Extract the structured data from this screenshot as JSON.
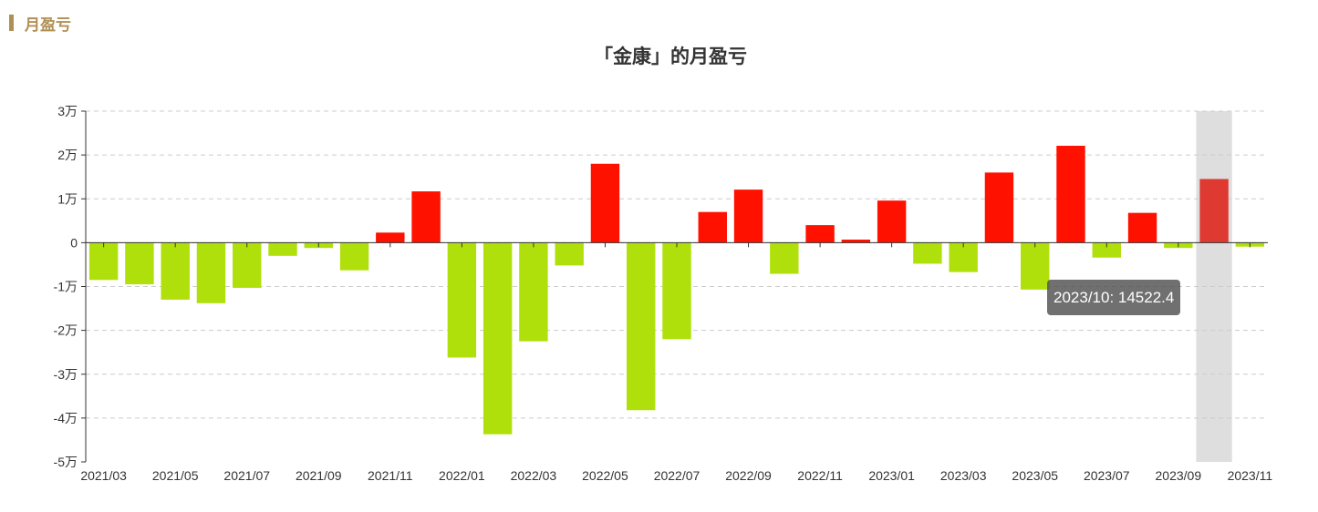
{
  "section": {
    "title": "月盈亏"
  },
  "chart_data": {
    "type": "bar",
    "title": "「金康」的月盈亏",
    "categories": [
      "2021/03",
      "2021/04",
      "2021/05",
      "2021/06",
      "2021/07",
      "2021/08",
      "2021/09",
      "2021/10",
      "2021/11",
      "2021/12",
      "2022/01",
      "2022/02",
      "2022/03",
      "2022/04",
      "2022/05",
      "2022/06",
      "2022/07",
      "2022/08",
      "2022/09",
      "2022/10",
      "2022/11",
      "2022/12",
      "2023/01",
      "2023/02",
      "2023/03",
      "2023/04",
      "2023/05",
      "2023/06",
      "2023/07",
      "2023/08",
      "2023/09",
      "2023/10",
      "2023/11"
    ],
    "values": [
      -8500,
      -9500,
      -13000,
      -13800,
      -10300,
      -3000,
      -1200,
      -6300,
      2300,
      11700,
      -26200,
      -43700,
      -22500,
      -5200,
      18000,
      -38200,
      -22000,
      7000,
      12100,
      -7100,
      4000,
      700,
      9600,
      -4800,
      -6700,
      16000,
      -10700,
      22100,
      -3400,
      6800,
      -1200,
      14522.4,
      -900
    ],
    "x_tick_labels": [
      "2021/03",
      "2021/05",
      "2021/07",
      "2021/09",
      "2021/11",
      "2022/01",
      "2022/03",
      "2022/05",
      "2022/07",
      "2022/09",
      "2022/11",
      "2023/01",
      "2023/03",
      "2023/05",
      "2023/07",
      "2023/09",
      "2023/11"
    ],
    "y_ticks": [
      30000,
      20000,
      10000,
      0,
      -10000,
      -20000,
      -30000,
      -40000,
      -50000
    ],
    "y_tick_labels": [
      "3万",
      "2万",
      "1万",
      "0",
      "-1万",
      "-2万",
      "-3万",
      "-4万",
      "-5万"
    ],
    "ylim": [
      -50000,
      30000
    ],
    "grid": true,
    "colors": {
      "positive": "#ff1100",
      "negative": "#b0e00b",
      "highlight": "#de3a31",
      "hover_band": "#dedede",
      "axis": "#333333",
      "grid": "#cccccc"
    },
    "highlighted_index": 31,
    "tooltip": "2023/10: 14522.4"
  }
}
